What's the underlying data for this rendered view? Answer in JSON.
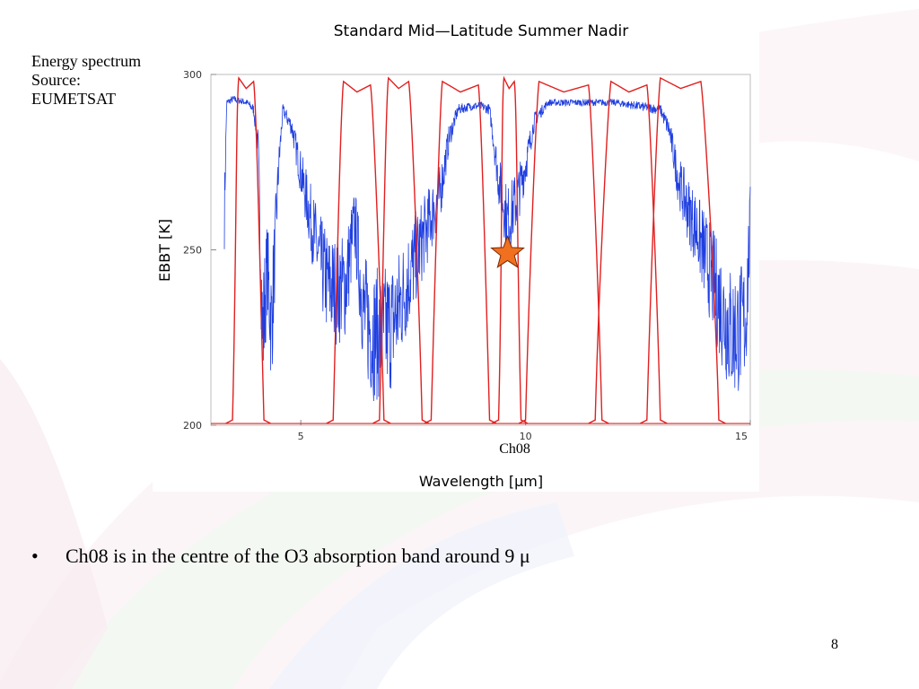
{
  "slide": {
    "source_note": "Energy spectrum Source: EUMETSAT",
    "bullet_symbol": "•",
    "bullet_text": "Ch08 is in the centre of the O3 absorption band  around 9 μ",
    "page_number": "8"
  },
  "chart_data": {
    "type": "line",
    "title": "Standard Mid—Latitude Summer Nadir",
    "xlabel": "Wavelength  [μm]",
    "ylabel": "EBBT  [K]",
    "xlim": [
      3.0,
      15.0
    ],
    "ylim": [
      200,
      300
    ],
    "x_ticks": [
      {
        "value": 5,
        "label": "5"
      },
      {
        "value": 10,
        "label": "10"
      },
      {
        "value": 15,
        "label": "15"
      }
    ],
    "y_ticks": [
      {
        "value": 200,
        "label": "200"
      },
      {
        "value": 250,
        "label": "250"
      },
      {
        "value": 300,
        "label": "300"
      }
    ],
    "grid": false,
    "colors": {
      "spectrum": "#1f3fe0",
      "filters": "#e02020",
      "marker": "#f07020"
    },
    "spectrum_series": {
      "color": "#1f3fe0",
      "points": [
        [
          3.3,
          260
        ],
        [
          3.35,
          292
        ],
        [
          3.5,
          293
        ],
        [
          3.8,
          292
        ],
        [
          3.95,
          290
        ],
        [
          4.05,
          280
        ],
        [
          4.15,
          225
        ],
        [
          4.25,
          245
        ],
        [
          4.35,
          228
        ],
        [
          4.5,
          272
        ],
        [
          4.6,
          290
        ],
        [
          4.8,
          285
        ],
        [
          5.0,
          272
        ],
        [
          5.2,
          260
        ],
        [
          5.4,
          248
        ],
        [
          5.6,
          240
        ],
        [
          5.8,
          238
        ],
        [
          6.0,
          240
        ],
        [
          6.2,
          258
        ],
        [
          6.4,
          232
        ],
        [
          6.6,
          226
        ],
        [
          6.8,
          226
        ],
        [
          7.0,
          228
        ],
        [
          7.2,
          234
        ],
        [
          7.5,
          246
        ],
        [
          7.8,
          256
        ],
        [
          8.1,
          266
        ],
        [
          8.3,
          282
        ],
        [
          8.5,
          290
        ],
        [
          8.8,
          291
        ],
        [
          9.0,
          291
        ],
        [
          9.2,
          290
        ],
        [
          9.4,
          270
        ],
        [
          9.6,
          258
        ],
        [
          9.8,
          264
        ],
        [
          10.0,
          274
        ],
        [
          10.2,
          287
        ],
        [
          10.5,
          292
        ],
        [
          11.0,
          292
        ],
        [
          11.5,
          292
        ],
        [
          12.0,
          292
        ],
        [
          12.5,
          291
        ],
        [
          13.0,
          290
        ],
        [
          13.2,
          284
        ],
        [
          13.4,
          270
        ],
        [
          13.6,
          262
        ],
        [
          13.8,
          256
        ],
        [
          14.0,
          248
        ],
        [
          14.2,
          240
        ],
        [
          14.4,
          232
        ],
        [
          14.6,
          226
        ],
        [
          14.8,
          228
        ],
        [
          14.9,
          230
        ],
        [
          15.0,
          258
        ]
      ]
    },
    "marker": {
      "label": "Ch08",
      "x": 9.6,
      "y": 249
    },
    "filter_bands": [
      {
        "start": 3.48,
        "peak_start": 3.62,
        "peak_end": 3.95,
        "end": 4.18,
        "peak": 299
      },
      {
        "start": 5.72,
        "peak_start": 5.95,
        "peak_end": 6.55,
        "end": 6.85,
        "peak": 298
      },
      {
        "start": 6.75,
        "peak_start": 6.95,
        "peak_end": 7.4,
        "end": 7.7,
        "peak": 299
      },
      {
        "start": 7.9,
        "peak_start": 8.15,
        "peak_end": 8.95,
        "end": 9.2,
        "peak": 298
      },
      {
        "start": 9.4,
        "peak_start": 9.52,
        "peak_end": 9.75,
        "end": 9.9,
        "peak": 299
      },
      {
        "start": 10.0,
        "peak_start": 10.3,
        "peak_end": 11.4,
        "end": 11.7,
        "peak": 298
      },
      {
        "start": 11.55,
        "peak_start": 11.9,
        "peak_end": 12.7,
        "end": 13.0,
        "peak": 298
      },
      {
        "start": 12.7,
        "peak_start": 13.0,
        "peak_end": 13.9,
        "end": 14.3,
        "peak": 299
      }
    ]
  }
}
